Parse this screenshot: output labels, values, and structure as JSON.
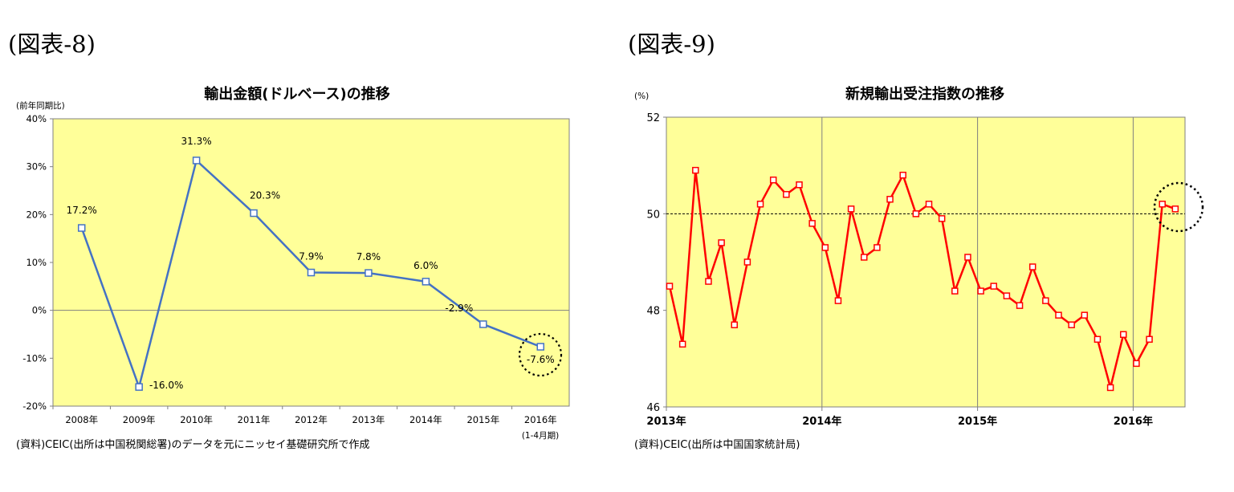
{
  "chart_data": [
    {
      "figure_label": "(図表-8)",
      "type": "line",
      "title": "輸出金額(ドルベース)の推移",
      "ylabel": "(前年同期比)",
      "source": "(資料)CEIC(出所は中国税関総署)のデータを元にニッセイ基礎研究所で作成",
      "categories": [
        "2008年",
        "2009年",
        "2010年",
        "2011年",
        "2012年",
        "2013年",
        "2014年",
        "2015年",
        "2016年"
      ],
      "category_note": "(1-4月期)",
      "values": [
        17.2,
        -16.0,
        31.3,
        20.3,
        7.9,
        7.8,
        6.0,
        -2.9,
        -7.6
      ],
      "data_labels": [
        "17.2%",
        "-16.0%",
        "31.3%",
        "20.3%",
        "7.9%",
        "7.8%",
        "6.0%",
        "-2.9%",
        "-7.6%"
      ],
      "ylim": [
        -20,
        40
      ],
      "yticks": [
        "40%",
        "30%",
        "20%",
        "10%",
        "0%",
        "-10%",
        "-20%"
      ],
      "series_color": "#4472C4",
      "background": "#FFFF99",
      "highlight": "dotted circle around 2016 value"
    },
    {
      "figure_label": "(図表-9)",
      "type": "line",
      "title": "新規輸出受注指数の推移",
      "ylabel": "(%)",
      "source": "(資料)CEIC(出所は中国国家統計局)",
      "x_start": "2013-01",
      "x_end": "2016-04",
      "xticks": [
        "2013年",
        "2014年",
        "2015年",
        "2016年"
      ],
      "values": [
        48.5,
        47.3,
        50.9,
        48.6,
        49.4,
        47.7,
        49.0,
        50.2,
        50.7,
        50.4,
        50.6,
        49.8,
        49.3,
        48.2,
        50.1,
        49.1,
        49.3,
        50.3,
        50.8,
        50.0,
        50.2,
        49.9,
        48.4,
        49.1,
        48.4,
        48.5,
        48.3,
        48.1,
        48.9,
        48.2,
        47.9,
        47.7,
        47.9,
        47.4,
        46.4,
        47.5,
        46.9,
        47.4,
        50.2,
        50.1
      ],
      "ylim": [
        46,
        52
      ],
      "yticks": [
        "52",
        "50",
        "48",
        "46"
      ],
      "reference_line": 50,
      "series_color": "#FF0000",
      "background": "#FFFF99",
      "highlight": "dotted circle around latest values"
    }
  ]
}
